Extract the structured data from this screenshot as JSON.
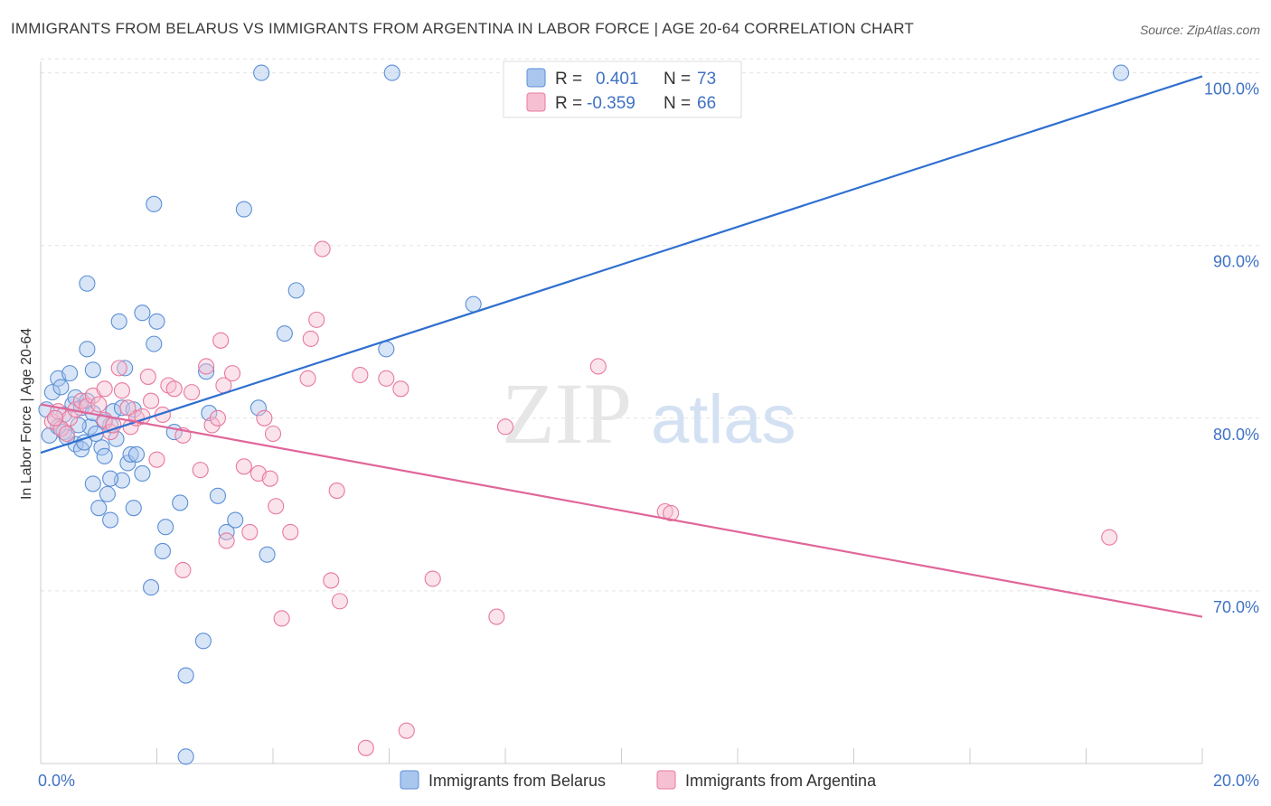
{
  "header": {
    "title": "IMMIGRANTS FROM BELARUS VS IMMIGRANTS FROM ARGENTINA IN LABOR FORCE | AGE 20-64 CORRELATION CHART",
    "source": "Source: ZipAtlas.com"
  },
  "watermark": {
    "zip": "ZIP",
    "atlas": "atlas"
  },
  "legend_top": {
    "rows": [
      {
        "r_label": "R =",
        "r_value": "0.401",
        "n_label": "N =",
        "n_value": "73"
      },
      {
        "r_label": "R =",
        "r_value": "-0.359",
        "n_label": "N =",
        "n_value": "66"
      }
    ]
  },
  "chart_data": {
    "type": "scatter",
    "title": "IMMIGRANTS FROM BELARUS VS IMMIGRANTS FROM ARGENTINA IN LABOR FORCE | AGE 20-64 CORRELATION CHART",
    "xlabel": "",
    "ylabel": "In Labor Force | Age 20-64",
    "xlim": [
      0,
      20
    ],
    "ylim": [
      60,
      101
    ],
    "x_tick_labels": [
      "0.0%",
      "20.0%"
    ],
    "y_ticks": [
      70,
      80,
      90,
      100
    ],
    "y_tick_labels": [
      "70.0%",
      "80.0%",
      "90.0%",
      "100.0%"
    ],
    "grid": true,
    "legend_position": "bottom",
    "colors": {
      "belarus": "#5b8fd6",
      "argentina": "#e8799e",
      "belarus_fill": "#a9c6ee",
      "argentina_fill": "#f6c0d2"
    },
    "series": [
      {
        "name": "Immigrants from Belarus",
        "r": 0.401,
        "n": 73,
        "trend": {
          "x": [
            0,
            20
          ],
          "y": [
            78.0,
            99.8
          ]
        },
        "points": [
          [
            0.1,
            80.5
          ],
          [
            0.2,
            81.5
          ],
          [
            0.3,
            82.3
          ],
          [
            0.35,
            81.8
          ],
          [
            0.4,
            80.2
          ],
          [
            0.5,
            82.6
          ],
          [
            0.15,
            79.0
          ],
          [
            0.25,
            80.0
          ],
          [
            0.55,
            80.8
          ],
          [
            0.6,
            81.2
          ],
          [
            0.7,
            80.6
          ],
          [
            0.8,
            81.0
          ],
          [
            0.4,
            79.2
          ],
          [
            0.6,
            78.5
          ],
          [
            0.7,
            78.2
          ],
          [
            0.75,
            78.6
          ],
          [
            0.85,
            79.5
          ],
          [
            0.9,
            80.3
          ],
          [
            0.8,
            84.0
          ],
          [
            0.9,
            82.8
          ],
          [
            0.8,
            87.8
          ],
          [
            1.05,
            78.3
          ],
          [
            1.1,
            77.8
          ],
          [
            1.2,
            79.6
          ],
          [
            1.25,
            80.4
          ],
          [
            1.4,
            80.6
          ],
          [
            1.6,
            80.5
          ],
          [
            1.5,
            77.4
          ],
          [
            1.55,
            77.9
          ],
          [
            1.65,
            77.9
          ],
          [
            1.4,
            76.4
          ],
          [
            1.2,
            76.5
          ],
          [
            1.75,
            76.8
          ],
          [
            0.9,
            76.2
          ],
          [
            1.0,
            74.8
          ],
          [
            1.15,
            75.6
          ],
          [
            1.2,
            74.1
          ],
          [
            1.6,
            74.8
          ],
          [
            1.45,
            82.9
          ],
          [
            1.35,
            85.6
          ],
          [
            1.75,
            86.1
          ],
          [
            1.95,
            84.3
          ],
          [
            2.0,
            85.6
          ],
          [
            1.95,
            92.4
          ],
          [
            2.15,
            73.7
          ],
          [
            2.1,
            72.3
          ],
          [
            1.9,
            70.2
          ],
          [
            2.4,
            75.1
          ],
          [
            2.3,
            79.2
          ],
          [
            2.85,
            82.7
          ],
          [
            2.9,
            80.3
          ],
          [
            3.05,
            75.5
          ],
          [
            3.2,
            73.4
          ],
          [
            3.35,
            74.1
          ],
          [
            3.5,
            92.1
          ],
          [
            2.8,
            67.1
          ],
          [
            2.5,
            65.1
          ],
          [
            2.5,
            60.4
          ],
          [
            3.75,
            80.6
          ],
          [
            3.9,
            72.1
          ],
          [
            4.2,
            84.9
          ],
          [
            4.4,
            87.4
          ],
          [
            3.8,
            100.0
          ],
          [
            5.95,
            84.0
          ],
          [
            6.05,
            100.0
          ],
          [
            7.45,
            86.6
          ],
          [
            18.6,
            100.0
          ],
          [
            0.45,
            78.9
          ],
          [
            0.95,
            79.1
          ],
          [
            1.3,
            78.8
          ],
          [
            0.65,
            79.6
          ],
          [
            1.1,
            79.8
          ],
          [
            0.3,
            79.5
          ]
        ]
      },
      {
        "name": "Immigrants from Argentina",
        "r": -0.359,
        "n": 66,
        "trend": {
          "x": [
            0,
            20
          ],
          "y": [
            80.8,
            68.5
          ]
        },
        "points": [
          [
            0.2,
            79.8
          ],
          [
            0.3,
            80.4
          ],
          [
            0.5,
            80.0
          ],
          [
            0.6,
            80.5
          ],
          [
            0.7,
            81.0
          ],
          [
            0.8,
            80.7
          ],
          [
            0.9,
            81.3
          ],
          [
            1.0,
            80.8
          ],
          [
            1.1,
            81.7
          ],
          [
            0.35,
            79.4
          ],
          [
            0.45,
            79.1
          ],
          [
            0.25,
            80.0
          ],
          [
            1.1,
            79.9
          ],
          [
            1.2,
            79.2
          ],
          [
            1.25,
            79.6
          ],
          [
            1.35,
            82.9
          ],
          [
            1.4,
            81.6
          ],
          [
            1.55,
            79.5
          ],
          [
            1.65,
            80.0
          ],
          [
            1.75,
            80.1
          ],
          [
            1.9,
            81.0
          ],
          [
            1.85,
            82.4
          ],
          [
            2.0,
            77.6
          ],
          [
            2.1,
            80.2
          ],
          [
            2.2,
            81.9
          ],
          [
            2.3,
            81.7
          ],
          [
            2.45,
            79.0
          ],
          [
            2.6,
            81.5
          ],
          [
            2.75,
            77.0
          ],
          [
            2.85,
            83.0
          ],
          [
            2.95,
            79.6
          ],
          [
            3.05,
            80.0
          ],
          [
            3.1,
            84.5
          ],
          [
            3.15,
            81.9
          ],
          [
            3.3,
            82.6
          ],
          [
            3.5,
            77.2
          ],
          [
            3.6,
            73.4
          ],
          [
            3.75,
            76.8
          ],
          [
            3.85,
            80.0
          ],
          [
            3.95,
            76.5
          ],
          [
            4.0,
            79.1
          ],
          [
            4.05,
            74.9
          ],
          [
            4.15,
            68.4
          ],
          [
            4.3,
            73.4
          ],
          [
            4.6,
            82.3
          ],
          [
            4.65,
            84.6
          ],
          [
            4.75,
            85.7
          ],
          [
            4.85,
            89.8
          ],
          [
            5.0,
            70.6
          ],
          [
            5.1,
            75.8
          ],
          [
            5.15,
            69.4
          ],
          [
            5.5,
            82.5
          ],
          [
            5.6,
            60.9
          ],
          [
            5.95,
            82.3
          ],
          [
            6.2,
            81.7
          ],
          [
            6.3,
            61.9
          ],
          [
            6.75,
            70.7
          ],
          [
            7.85,
            68.5
          ],
          [
            8.0,
            79.5
          ],
          [
            9.6,
            83.0
          ],
          [
            10.75,
            74.6
          ],
          [
            10.85,
            74.5
          ],
          [
            18.4,
            73.1
          ],
          [
            2.45,
            71.2
          ],
          [
            3.2,
            72.9
          ],
          [
            1.5,
            80.6
          ]
        ]
      }
    ]
  },
  "legend_bottom": {
    "items": [
      "Immigrants from Belarus",
      "Immigrants from Argentina"
    ]
  }
}
